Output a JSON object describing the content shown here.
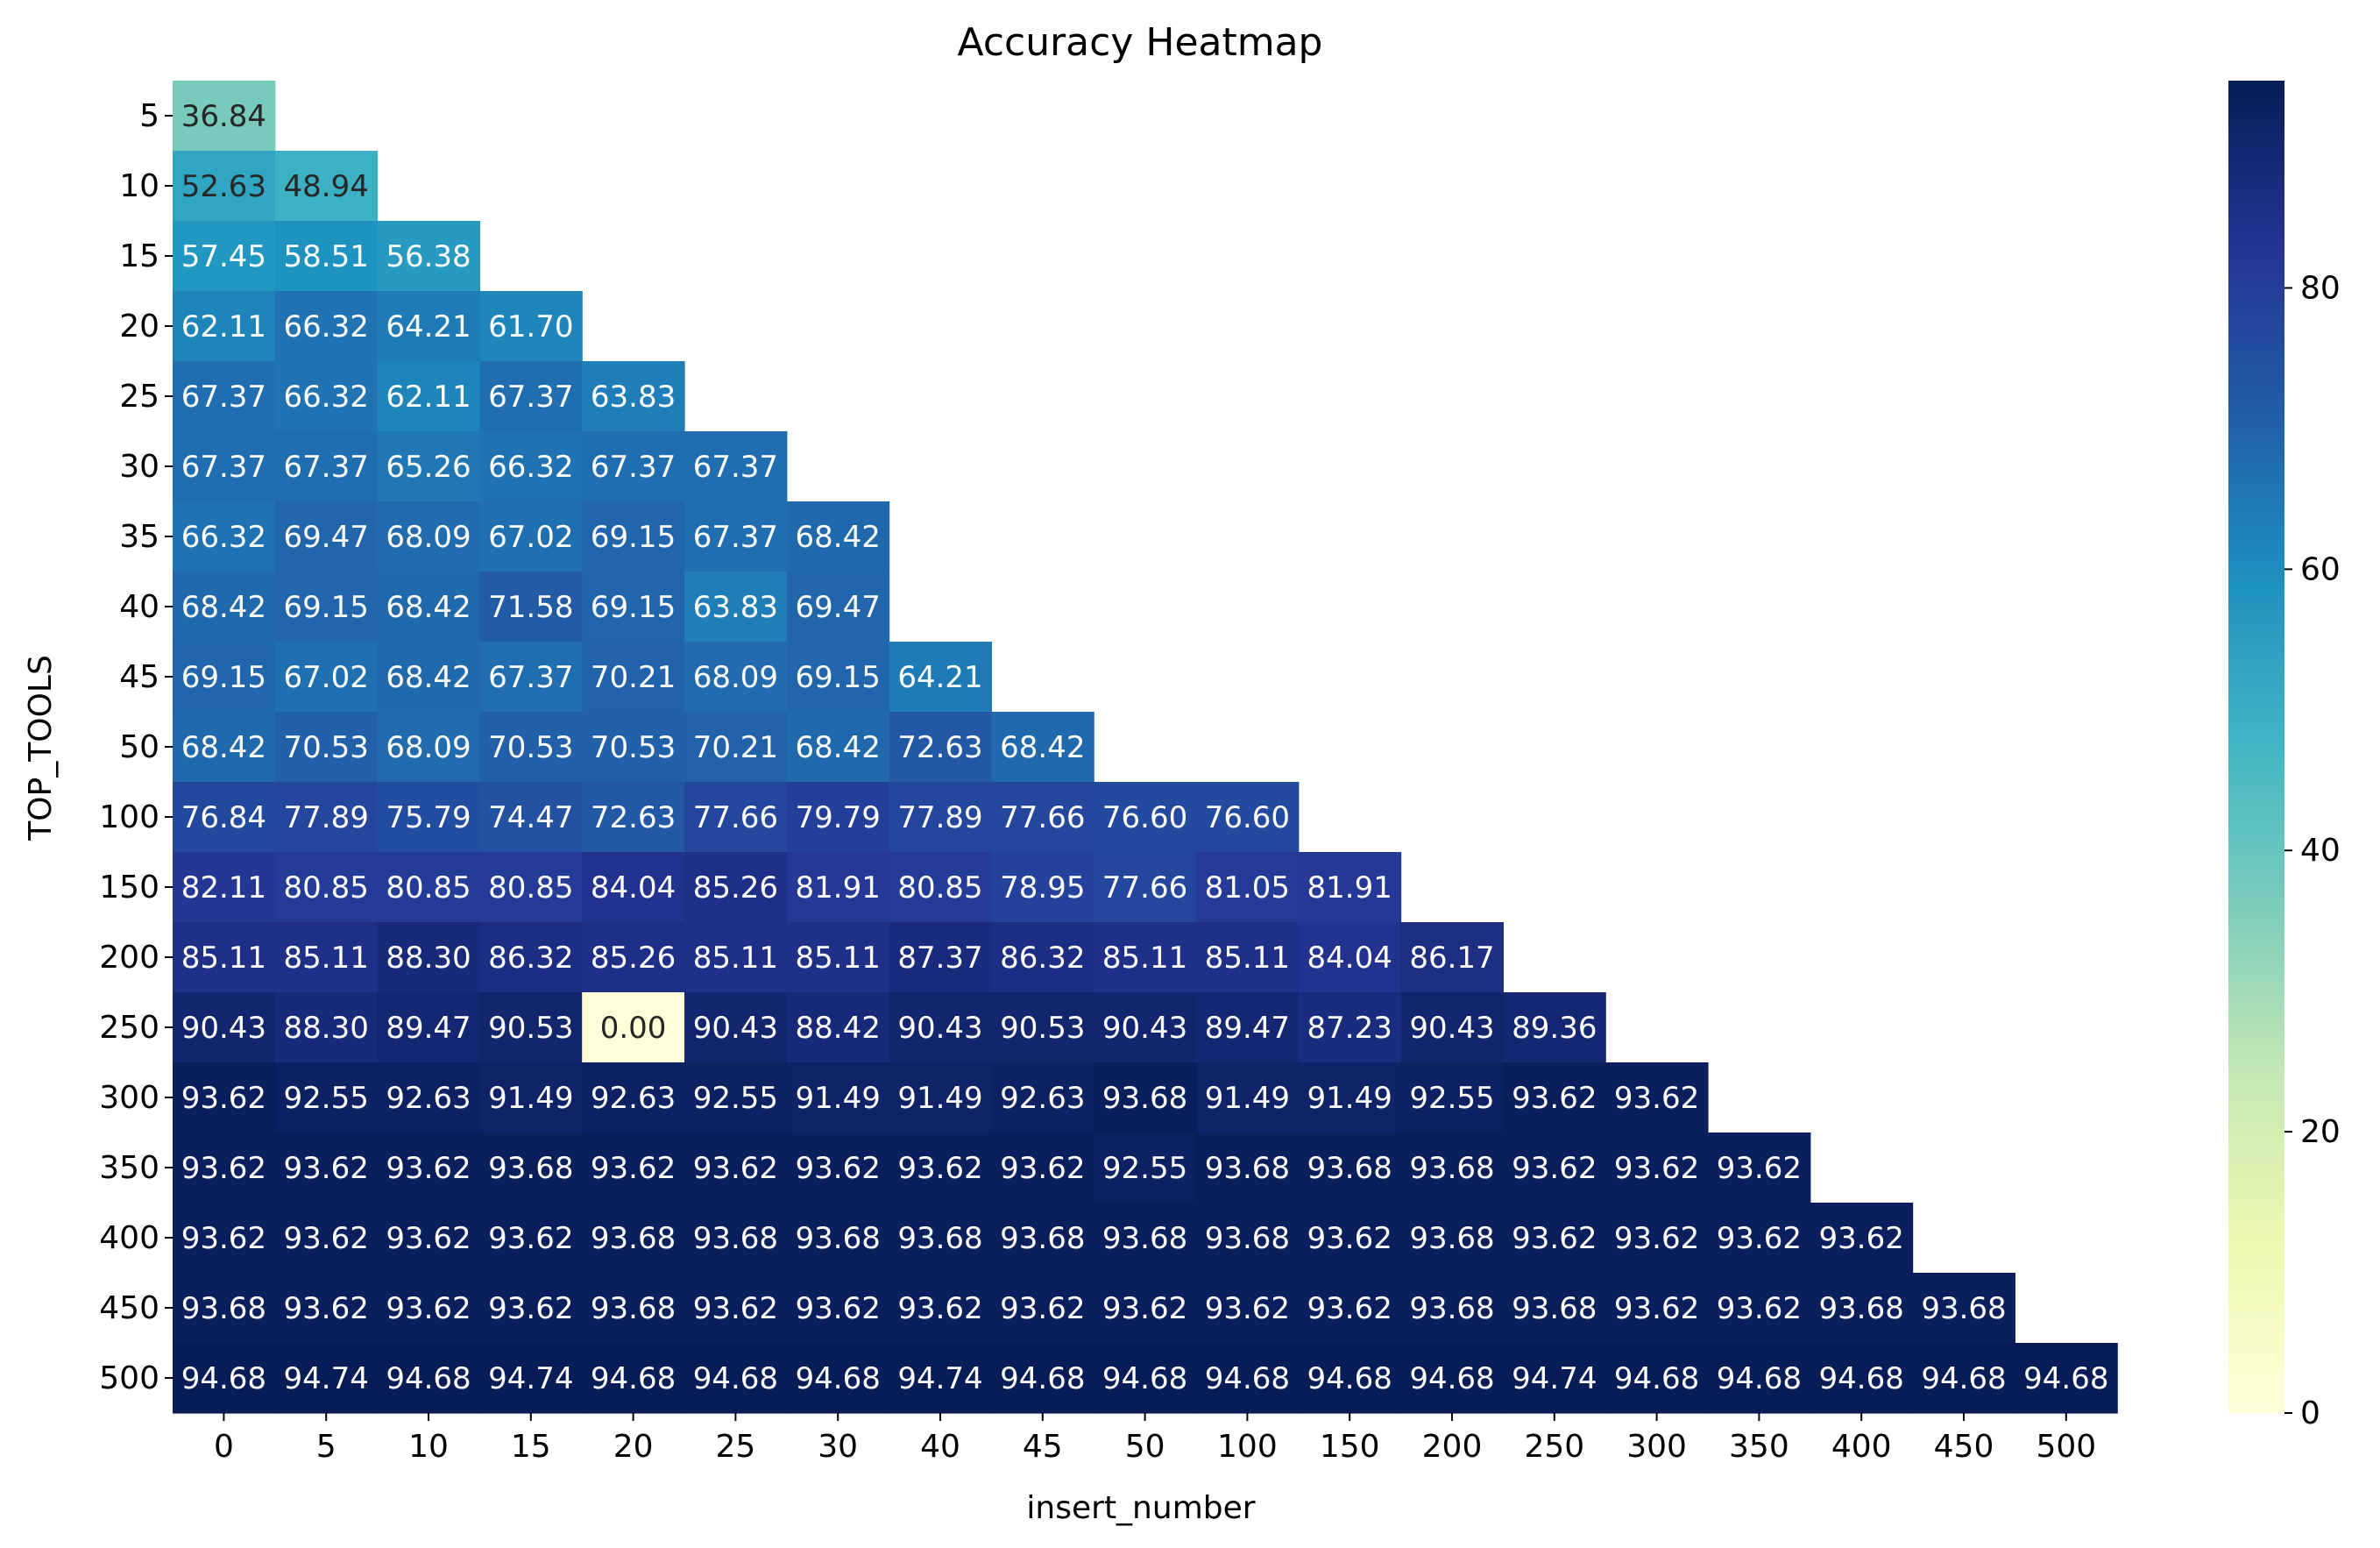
{
  "chart_data": {
    "type": "heatmap",
    "title": "Accuracy Heatmap",
    "xlabel": "insert_number",
    "ylabel": "TOP_TOOLS",
    "x_categories": [
      "0",
      "5",
      "10",
      "15",
      "20",
      "25",
      "30",
      "40",
      "45",
      "50",
      "100",
      "150",
      "200",
      "250",
      "300",
      "350",
      "400",
      "450",
      "500"
    ],
    "y_categories": [
      "5",
      "10",
      "15",
      "20",
      "25",
      "30",
      "35",
      "40",
      "45",
      "50",
      "100",
      "150",
      "200",
      "250",
      "300",
      "350",
      "400",
      "450",
      "500"
    ],
    "values": [
      [
        36.84
      ],
      [
        52.63,
        48.94
      ],
      [
        57.45,
        58.51,
        56.38
      ],
      [
        62.11,
        66.32,
        64.21,
        61.7
      ],
      [
        67.37,
        66.32,
        62.11,
        67.37,
        63.83
      ],
      [
        67.37,
        67.37,
        65.26,
        66.32,
        67.37,
        67.37
      ],
      [
        66.32,
        69.47,
        68.09,
        67.02,
        69.15,
        67.37,
        68.42
      ],
      [
        68.42,
        69.15,
        68.42,
        71.58,
        69.15,
        63.83,
        69.47
      ],
      [
        69.15,
        67.02,
        68.42,
        67.37,
        70.21,
        68.09,
        69.15,
        64.21
      ],
      [
        68.42,
        70.53,
        68.09,
        70.53,
        70.53,
        70.21,
        68.42,
        72.63,
        68.42
      ],
      [
        76.84,
        77.89,
        75.79,
        74.47,
        72.63,
        77.66,
        79.79,
        77.89,
        77.66,
        76.6,
        76.6
      ],
      [
        82.11,
        80.85,
        80.85,
        80.85,
        84.04,
        85.26,
        81.91,
        80.85,
        78.95,
        77.66,
        81.05,
        81.91
      ],
      [
        85.11,
        85.11,
        88.3,
        86.32,
        85.26,
        85.11,
        85.11,
        87.37,
        86.32,
        85.11,
        85.11,
        84.04,
        86.17
      ],
      [
        90.43,
        88.3,
        89.47,
        90.53,
        0.0,
        90.43,
        88.42,
        90.43,
        90.53,
        90.43,
        89.47,
        87.23,
        90.43,
        89.36
      ],
      [
        93.62,
        92.55,
        92.63,
        91.49,
        92.63,
        92.55,
        91.49,
        91.49,
        92.63,
        93.68,
        91.49,
        91.49,
        92.55,
        93.62,
        93.62
      ],
      [
        93.62,
        93.62,
        93.62,
        93.68,
        93.62,
        93.62,
        93.62,
        93.62,
        93.62,
        92.55,
        93.68,
        93.68,
        93.68,
        93.62,
        93.62,
        93.62
      ],
      [
        93.62,
        93.62,
        93.62,
        93.62,
        93.68,
        93.68,
        93.68,
        93.68,
        93.68,
        93.68,
        93.68,
        93.62,
        93.68,
        93.62,
        93.62,
        93.62,
        93.62
      ],
      [
        93.68,
        93.62,
        93.62,
        93.62,
        93.68,
        93.62,
        93.62,
        93.62,
        93.62,
        93.62,
        93.62,
        93.62,
        93.68,
        93.68,
        93.62,
        93.62,
        93.68,
        93.68
      ],
      [
        94.68,
        94.74,
        94.68,
        94.74,
        94.68,
        94.68,
        94.68,
        94.74,
        94.68,
        94.68,
        94.68,
        94.68,
        94.68,
        94.74,
        94.68,
        94.68,
        94.68,
        94.68,
        94.68
      ]
    ],
    "value_format": "0.00",
    "colormap": "YlGnBu",
    "colorbar": {
      "range": [
        0,
        94.74
      ],
      "ticks": [
        0,
        20,
        40,
        60,
        80
      ],
      "position": "right"
    },
    "legend": "none",
    "grid": false
  }
}
